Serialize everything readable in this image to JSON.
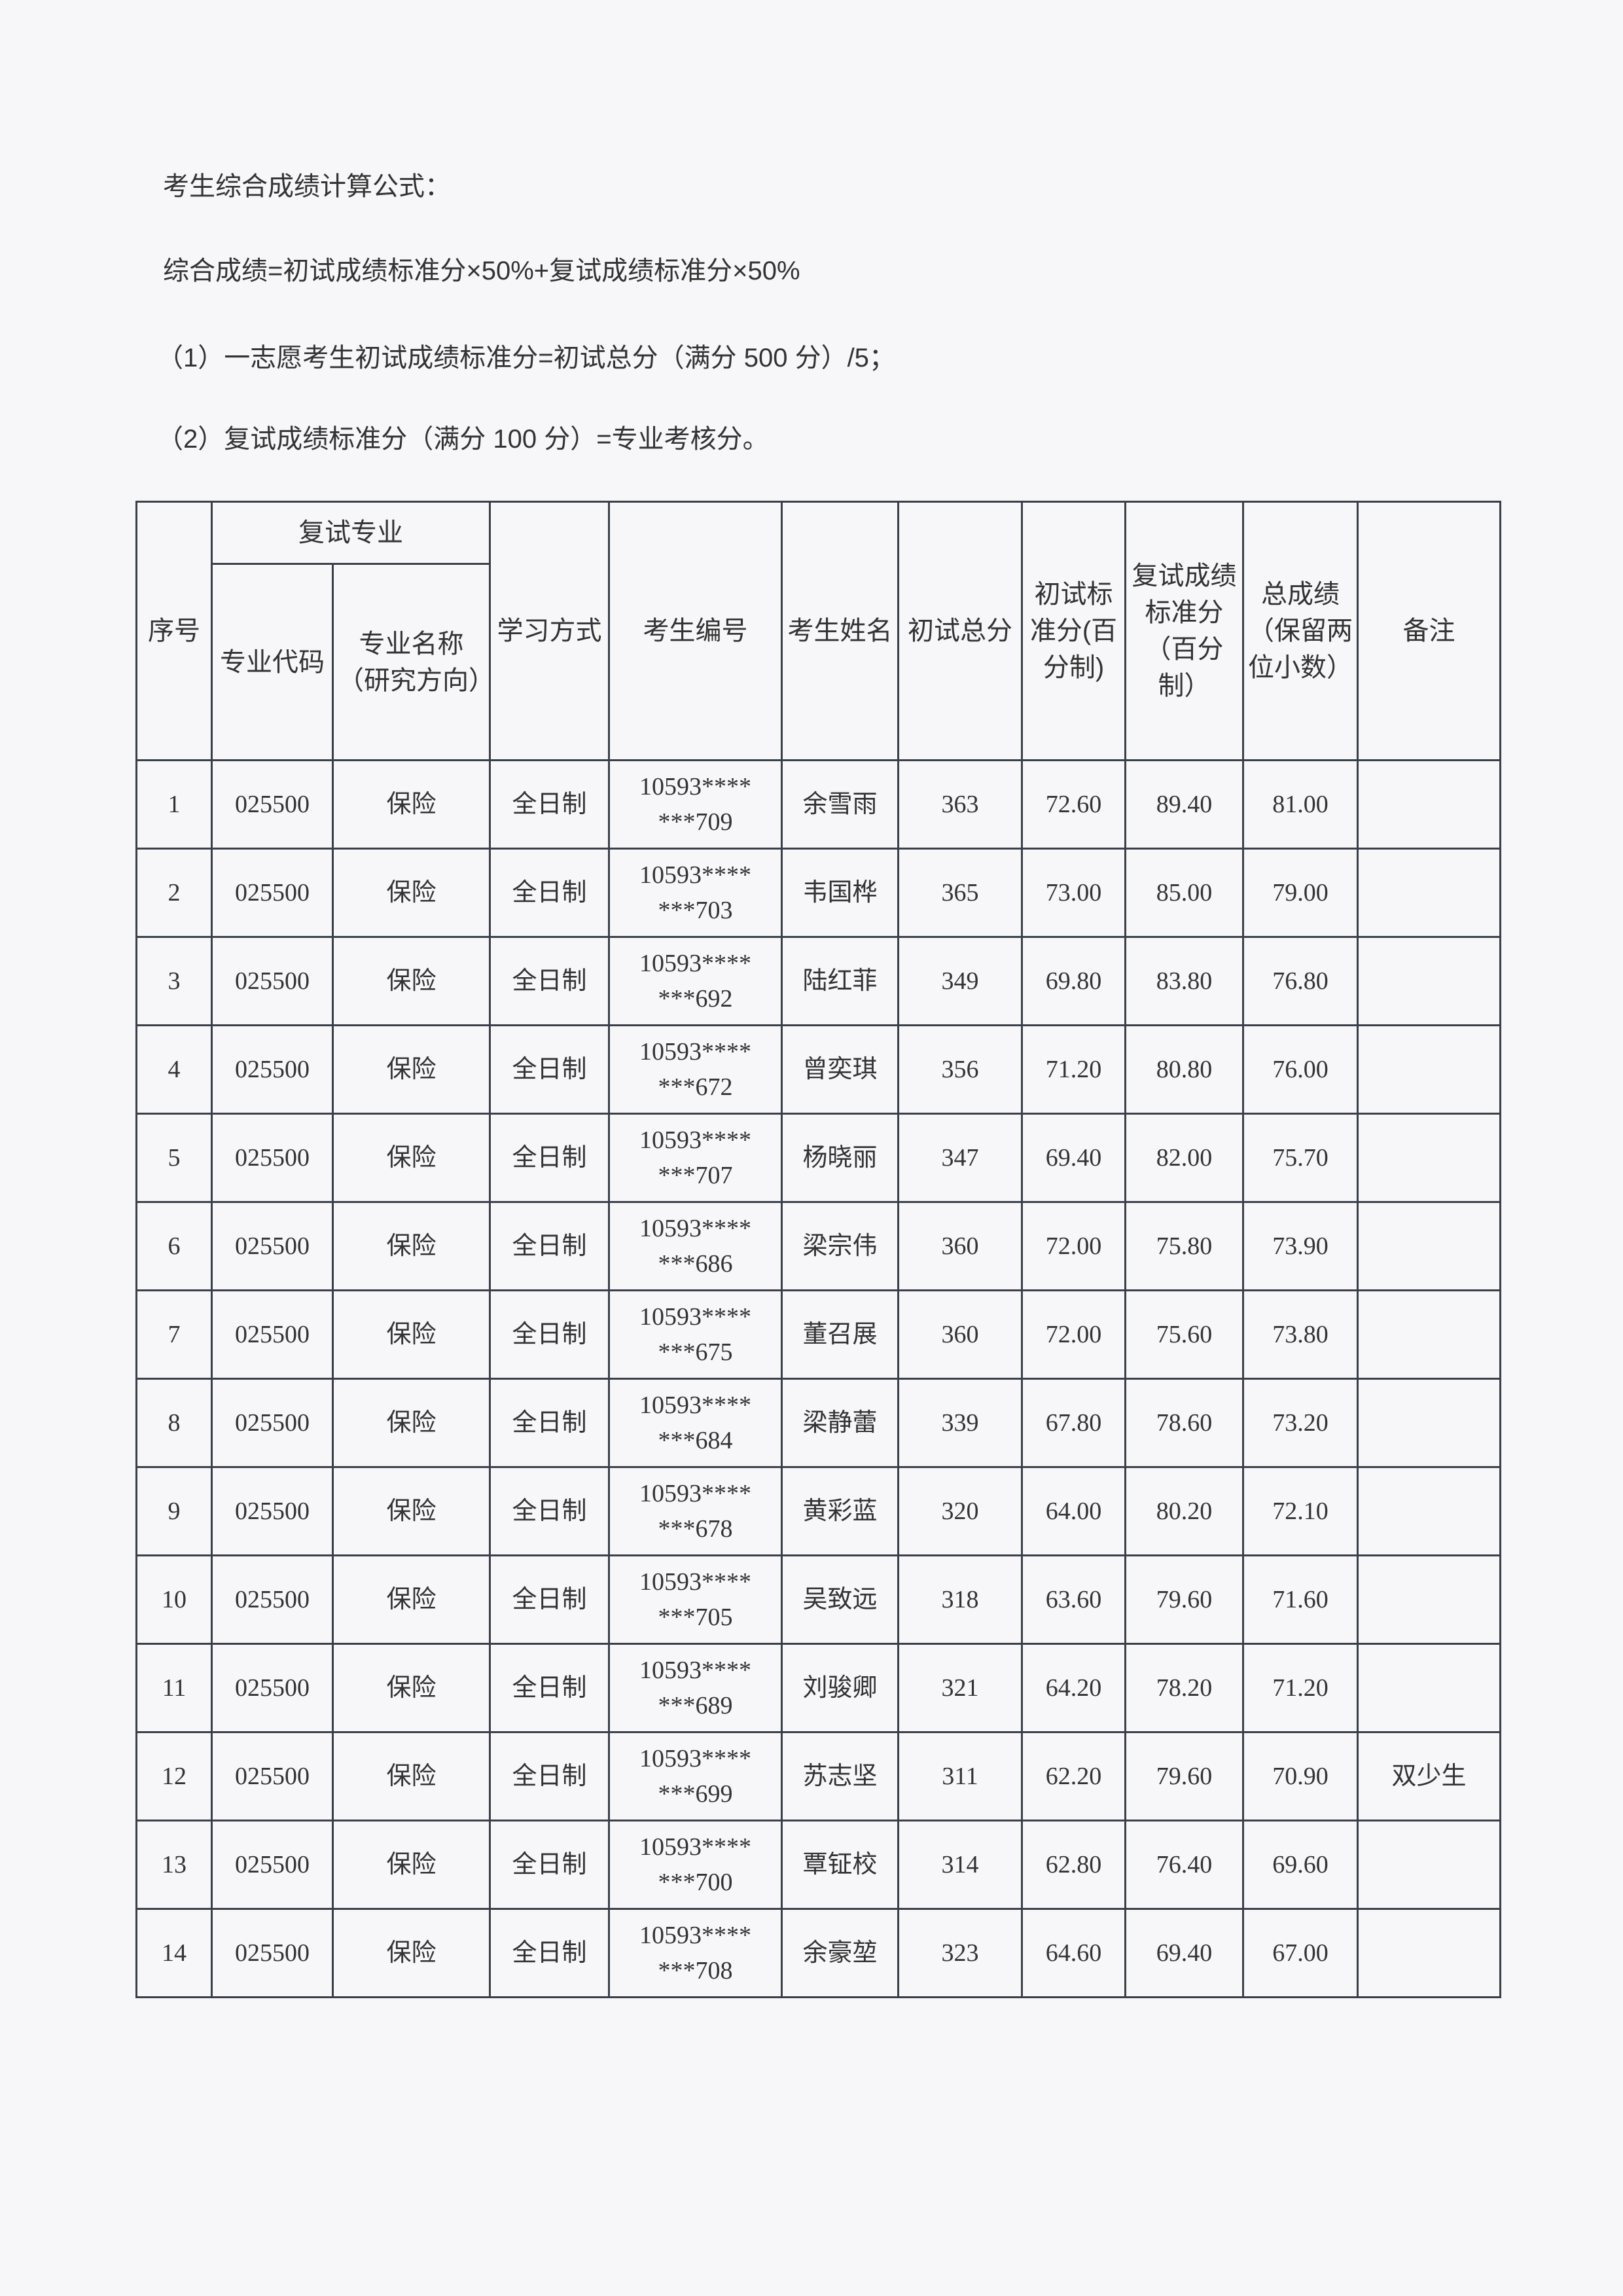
{
  "formula": {
    "title": "考生综合成绩计算公式：",
    "main": "综合成绩=初试成绩标准分×50%+复试成绩标准分×50%",
    "note1": "（1）一志愿考生初试成绩标准分=初试总分（满分 500 分）/5；",
    "note2": "（2）复试成绩标准分（满分 100 分）=专业考核分。"
  },
  "table": {
    "headers": {
      "seq": "序号",
      "major_group": "复试专业",
      "major_code": "专业代码",
      "major_name": "专业名称（研究方向）",
      "study_mode": "学习方式",
      "exam_id": "考生编号",
      "name": "考生姓名",
      "initial_total": "初试总分",
      "initial_std": "初试标准分(百分制)",
      "retest_std": "复试成绩标准分（百分制）",
      "total": "总成绩（保留两位小数）",
      "remark": "备注"
    },
    "rows": [
      {
        "seq": "1",
        "code": "025500",
        "major": "保险",
        "mode": "全日制",
        "id1": "10593****",
        "id2": "***709",
        "name": "余雪雨",
        "initial": "363",
        "istd": "72.60",
        "rstd": "89.40",
        "total": "81.00",
        "remark": ""
      },
      {
        "seq": "2",
        "code": "025500",
        "major": "保险",
        "mode": "全日制",
        "id1": "10593****",
        "id2": "***703",
        "name": "韦国桦",
        "initial": "365",
        "istd": "73.00",
        "rstd": "85.00",
        "total": "79.00",
        "remark": ""
      },
      {
        "seq": "3",
        "code": "025500",
        "major": "保险",
        "mode": "全日制",
        "id1": "10593****",
        "id2": "***692",
        "name": "陆红菲",
        "initial": "349",
        "istd": "69.80",
        "rstd": "83.80",
        "total": "76.80",
        "remark": ""
      },
      {
        "seq": "4",
        "code": "025500",
        "major": "保险",
        "mode": "全日制",
        "id1": "10593****",
        "id2": "***672",
        "name": "曾奕琪",
        "initial": "356",
        "istd": "71.20",
        "rstd": "80.80",
        "total": "76.00",
        "remark": ""
      },
      {
        "seq": "5",
        "code": "025500",
        "major": "保险",
        "mode": "全日制",
        "id1": "10593****",
        "id2": "***707",
        "name": "杨晓丽",
        "initial": "347",
        "istd": "69.40",
        "rstd": "82.00",
        "total": "75.70",
        "remark": ""
      },
      {
        "seq": "6",
        "code": "025500",
        "major": "保险",
        "mode": "全日制",
        "id1": "10593****",
        "id2": "***686",
        "name": "梁宗伟",
        "initial": "360",
        "istd": "72.00",
        "rstd": "75.80",
        "total": "73.90",
        "remark": ""
      },
      {
        "seq": "7",
        "code": "025500",
        "major": "保险",
        "mode": "全日制",
        "id1": "10593****",
        "id2": "***675",
        "name": "董召展",
        "initial": "360",
        "istd": "72.00",
        "rstd": "75.60",
        "total": "73.80",
        "remark": ""
      },
      {
        "seq": "8",
        "code": "025500",
        "major": "保险",
        "mode": "全日制",
        "id1": "10593****",
        "id2": "***684",
        "name": "梁静蕾",
        "initial": "339",
        "istd": "67.80",
        "rstd": "78.60",
        "total": "73.20",
        "remark": ""
      },
      {
        "seq": "9",
        "code": "025500",
        "major": "保险",
        "mode": "全日制",
        "id1": "10593****",
        "id2": "***678",
        "name": "黄彩蓝",
        "initial": "320",
        "istd": "64.00",
        "rstd": "80.20",
        "total": "72.10",
        "remark": ""
      },
      {
        "seq": "10",
        "code": "025500",
        "major": "保险",
        "mode": "全日制",
        "id1": "10593****",
        "id2": "***705",
        "name": "吴致远",
        "initial": "318",
        "istd": "63.60",
        "rstd": "79.60",
        "total": "71.60",
        "remark": ""
      },
      {
        "seq": "11",
        "code": "025500",
        "major": "保险",
        "mode": "全日制",
        "id1": "10593****",
        "id2": "***689",
        "name": "刘骏卿",
        "initial": "321",
        "istd": "64.20",
        "rstd": "78.20",
        "total": "71.20",
        "remark": ""
      },
      {
        "seq": "12",
        "code": "025500",
        "major": "保险",
        "mode": "全日制",
        "id1": "10593****",
        "id2": "***699",
        "name": "苏志坚",
        "initial": "311",
        "istd": "62.20",
        "rstd": "79.60",
        "total": "70.90",
        "remark": "双少生"
      },
      {
        "seq": "13",
        "code": "025500",
        "major": "保险",
        "mode": "全日制",
        "id1": "10593****",
        "id2": "***700",
        "name": "覃钲校",
        "initial": "314",
        "istd": "62.80",
        "rstd": "76.40",
        "total": "69.60",
        "remark": ""
      },
      {
        "seq": "14",
        "code": "025500",
        "major": "保险",
        "mode": "全日制",
        "id1": "10593****",
        "id2": "***708",
        "name": "余豪堃",
        "initial": "323",
        "istd": "64.60",
        "rstd": "69.40",
        "total": "67.00",
        "remark": ""
      }
    ]
  }
}
